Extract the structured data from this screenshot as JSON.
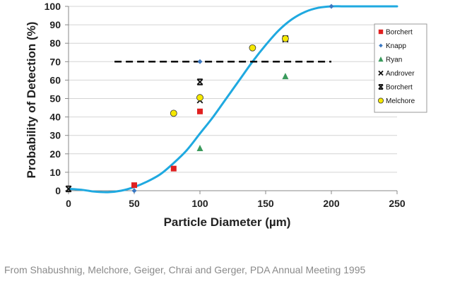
{
  "chart_data": {
    "type": "scatter",
    "title": "",
    "xlabel": "Particle Diameter (µm)",
    "ylabel": "Probability of Detection (%)",
    "xlim": [
      0,
      250
    ],
    "ylim": [
      0,
      100
    ],
    "x_ticks": [
      0,
      50,
      100,
      150,
      200,
      250
    ],
    "y_ticks": [
      0,
      10,
      20,
      30,
      40,
      50,
      60,
      70,
      80,
      90,
      100
    ],
    "grid": "horizontal",
    "legend_position": "right",
    "threshold_line": {
      "y": 70,
      "x_start": 35,
      "x_end": 200,
      "style": "dashed",
      "color": "#000000"
    },
    "fit_curve": {
      "color": "#1fa9e0",
      "points": [
        [
          0,
          1
        ],
        [
          10,
          0.5
        ],
        [
          20,
          -0.5
        ],
        [
          30,
          -0.8
        ],
        [
          40,
          0
        ],
        [
          50,
          2
        ],
        [
          60,
          5
        ],
        [
          70,
          9
        ],
        [
          80,
          15
        ],
        [
          90,
          22
        ],
        [
          100,
          31
        ],
        [
          110,
          40
        ],
        [
          120,
          50
        ],
        [
          130,
          60
        ],
        [
          140,
          70
        ],
        [
          150,
          79
        ],
        [
          160,
          87
        ],
        [
          170,
          93
        ],
        [
          180,
          97
        ],
        [
          190,
          99.2
        ],
        [
          200,
          100
        ],
        [
          210,
          100
        ],
        [
          230,
          100
        ],
        [
          250,
          100
        ]
      ]
    },
    "series": [
      {
        "name": "Borchert",
        "marker": "square",
        "color": "#e02020",
        "points": [
          [
            50,
            3
          ],
          [
            80,
            12
          ],
          [
            100,
            43
          ]
        ]
      },
      {
        "name": "Knapp",
        "marker": "diamond",
        "color": "#3a78c2",
        "points": [
          [
            50,
            0
          ],
          [
            100,
            70
          ],
          [
            200,
            100
          ]
        ]
      },
      {
        "name": "Ryan",
        "marker": "triangle",
        "color": "#3a9a5c",
        "points": [
          [
            100,
            23
          ],
          [
            165,
            62
          ]
        ]
      },
      {
        "name": "Androver",
        "marker": "x",
        "color": "#111111",
        "points": [
          [
            100,
            49
          ],
          [
            165,
            82
          ]
        ]
      },
      {
        "name": "Borchert",
        "marker": "bowtie",
        "color": "#111111",
        "points": [
          [
            0,
            1
          ],
          [
            100,
            59
          ],
          [
            165,
            82.5
          ]
        ]
      },
      {
        "name": "Melchore",
        "marker": "circle",
        "color": "#f5e800",
        "points": [
          [
            80,
            42
          ],
          [
            100,
            50.5
          ],
          [
            140,
            77.5
          ],
          [
            165,
            82.5
          ]
        ]
      }
    ]
  },
  "caption": "From Shabushnig, Melchore, Geiger, Chrai and Gerger, PDA Annual Meeting 1995"
}
